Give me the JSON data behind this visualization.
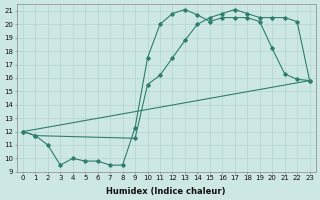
{
  "title": "",
  "xlabel": "Humidex (Indice chaleur)",
  "bg_color": "#cde8e4",
  "line_color": "#2e7d6e",
  "grid_color": "#b8d8d4",
  "xlim": [
    -0.5,
    23.5
  ],
  "ylim": [
    9,
    21.5
  ],
  "yticks": [
    9,
    10,
    11,
    12,
    13,
    14,
    15,
    16,
    17,
    18,
    19,
    20,
    21
  ],
  "xticks": [
    0,
    1,
    2,
    3,
    4,
    5,
    6,
    7,
    8,
    9,
    10,
    11,
    12,
    13,
    14,
    15,
    16,
    17,
    18,
    19,
    20,
    21,
    22,
    23
  ],
  "line1_x": [
    0,
    1,
    2,
    3,
    4,
    5,
    6,
    7,
    8,
    9,
    10,
    11,
    12,
    13,
    14,
    15,
    16,
    17,
    18,
    19,
    20,
    21,
    22,
    23
  ],
  "line1_y": [
    12,
    11.7,
    11,
    9.5,
    10,
    9.8,
    9.8,
    9.5,
    9.5,
    12.3,
    17.5,
    20,
    20.8,
    21.1,
    20.7,
    20.2,
    20.5,
    20.5,
    20.5,
    20.2,
    18.2,
    16.3,
    15.9,
    15.8
  ],
  "line2_x": [
    0,
    1,
    9,
    10,
    11,
    12,
    13,
    14,
    15,
    16,
    17,
    18,
    19,
    20,
    21,
    22,
    23
  ],
  "line2_y": [
    12,
    11.7,
    11.5,
    15.5,
    16.2,
    17.5,
    18.8,
    20.0,
    20.5,
    20.8,
    21.1,
    20.8,
    20.5,
    20.5,
    20.5,
    20.2,
    15.8
  ],
  "line3_x": [
    0,
    23
  ],
  "line3_y": [
    12,
    15.8
  ],
  "xlabel_fontsize": 6,
  "tick_fontsize": 5
}
